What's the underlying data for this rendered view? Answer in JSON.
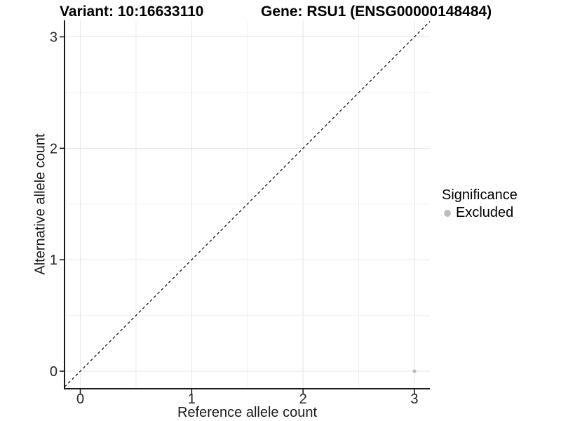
{
  "header": {
    "variant_title": "Variant: 10:16633110",
    "gene_title": "Gene: RSU1 (ENSG00000148484)"
  },
  "chart_data": {
    "type": "scatter",
    "title_left": "Variant: 10:16633110",
    "title_right": "Gene: RSU1 (ENSG00000148484)",
    "xlabel": "Reference allele count",
    "ylabel": "Alternative allele count",
    "xlim": [
      -0.15,
      3.15
    ],
    "ylim": [
      -0.15,
      3.15
    ],
    "xticks": [
      0,
      1,
      2,
      3
    ],
    "yticks": [
      0,
      1,
      2,
      3
    ],
    "grid": {
      "major": [
        0,
        1,
        2,
        3
      ],
      "minor": [
        0.5,
        1.5,
        2.5
      ],
      "major_color": "#e6e6e6",
      "minor_color": "#f0f0f0"
    },
    "reference_line": {
      "type": "identity",
      "slope": 1,
      "intercept": 0,
      "style": "dashed",
      "color": "#1a1a1a"
    },
    "series": [
      {
        "name": "Excluded",
        "color": "#bdbdbd",
        "points": [
          [
            3,
            0
          ]
        ]
      }
    ],
    "legend": {
      "title": "Significance",
      "position": "right",
      "items": [
        {
          "label": "Excluded",
          "color": "#bdbdbd"
        }
      ]
    },
    "axis": {
      "line_color": "#1a1a1a",
      "tick_color": "#1a1a1a",
      "tick_label_color": "#262626"
    }
  }
}
